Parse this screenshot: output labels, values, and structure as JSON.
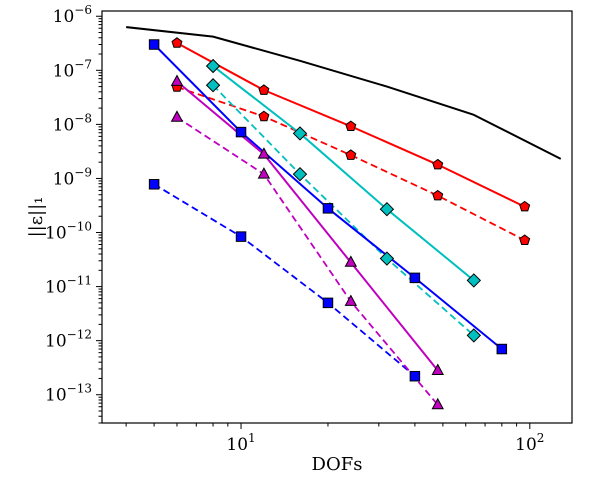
{
  "chart_data": {
    "type": "line",
    "xscale": "log",
    "yscale": "log",
    "xlim": [
      3.3,
      140
    ],
    "ylim": [
      3e-14,
      1.25e-06
    ],
    "grid": false,
    "legend": "none",
    "xlabel": "DOFs",
    "ylabel": "||ε||₁",
    "x_ticks": [
      {
        "value": 10,
        "base": "10",
        "exp": "1"
      },
      {
        "value": 100,
        "base": "10",
        "exp": "2"
      }
    ],
    "y_ticks": [
      {
        "value": 1e-13,
        "base": "10",
        "exp": "−13"
      },
      {
        "value": 1e-12,
        "base": "10",
        "exp": "−12"
      },
      {
        "value": 1e-11,
        "base": "10",
        "exp": "−11"
      },
      {
        "value": 1e-10,
        "base": "10",
        "exp": "−10"
      },
      {
        "value": 1e-09,
        "base": "10",
        "exp": "−9"
      },
      {
        "value": 1e-08,
        "base": "10",
        "exp": "−8"
      },
      {
        "value": 1e-07,
        "base": "10",
        "exp": "−7"
      },
      {
        "value": 1e-06,
        "base": "10",
        "exp": "−6"
      }
    ],
    "series": [
      {
        "color": "#000000",
        "dash": "solid",
        "marker": "none",
        "x": [
          4,
          8,
          16,
          32,
          64,
          128
        ],
        "y": [
          6.3e-07,
          4.2e-07,
          1.5e-07,
          5e-08,
          1.5e-08,
          2.3e-09
        ]
      },
      {
        "color": "#ff0000",
        "dash": "solid",
        "marker": "pentagon",
        "x": [
          6,
          12,
          24,
          48,
          96
        ],
        "y": [
          3.2e-07,
          4.3e-08,
          9.2e-09,
          1.8e-09,
          3e-10
        ]
      },
      {
        "color": "#ff0000",
        "dash": "dashed",
        "marker": "pentagon",
        "x": [
          6,
          12,
          24,
          48,
          96
        ],
        "y": [
          4.9e-08,
          1.4e-08,
          2.7e-09,
          4.8e-10,
          7.2e-11
        ]
      },
      {
        "color": "#00bfbf",
        "dash": "solid",
        "marker": "diamond",
        "x": [
          8,
          16,
          32,
          64
        ],
        "y": [
          1.2e-07,
          6.8e-09,
          2.7e-10,
          1.3e-11
        ]
      },
      {
        "color": "#00bfbf",
        "dash": "dashed",
        "marker": "diamond",
        "x": [
          8,
          16,
          32,
          64
        ],
        "y": [
          5.3e-08,
          1.2e-09,
          3.3e-11,
          1.25e-12
        ]
      },
      {
        "color": "#0000ff",
        "dash": "solid",
        "marker": "square",
        "x": [
          5,
          10,
          20,
          40,
          80
        ],
        "y": [
          3e-07,
          7.2e-09,
          2.8e-10,
          1.45e-11,
          7e-13
        ]
      },
      {
        "color": "#0000ff",
        "dash": "dashed",
        "marker": "square",
        "x": [
          5,
          10,
          20,
          40
        ],
        "y": [
          7.8e-10,
          8.4e-11,
          5e-12,
          2.2e-13
        ]
      },
      {
        "color": "#bf00bf",
        "dash": "solid",
        "marker": "triangle",
        "x": [
          6,
          12,
          24,
          48
        ],
        "y": [
          6.2e-08,
          2.8e-09,
          2.8e-11,
          2.8e-13
        ]
      },
      {
        "color": "#bf00bf",
        "dash": "dashed",
        "marker": "triangle",
        "x": [
          6,
          12,
          24,
          48
        ],
        "y": [
          1.35e-08,
          1.2e-09,
          5.3e-12,
          6.5e-14
        ]
      }
    ]
  }
}
